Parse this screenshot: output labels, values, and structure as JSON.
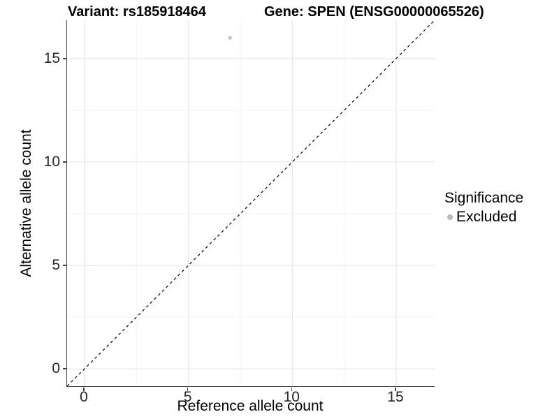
{
  "titles": {
    "variant": "Variant: rs185918464",
    "gene": "Gene: SPEN (ENSG00000065526)"
  },
  "axes": {
    "x": {
      "label": "Reference allele count",
      "major_ticks": [
        0,
        5,
        10,
        15
      ],
      "minor_ticks": [
        2.5,
        7.5,
        12.5
      ],
      "lim": [
        -0.84,
        16.85
      ]
    },
    "y": {
      "label": "Alternative allele count",
      "major_ticks": [
        0,
        5,
        10,
        15
      ],
      "minor_ticks": [
        2.5,
        7.5,
        12.5
      ],
      "lim": [
        -0.84,
        16.85
      ]
    }
  },
  "legend": {
    "title": "Significance",
    "items": [
      {
        "label": "Excluded",
        "color": "#b9b9b9"
      }
    ]
  },
  "chart_data": {
    "type": "scatter",
    "title": "Variant: rs185918464 | Gene: SPEN (ENSG00000065526)",
    "xlabel": "Reference allele count",
    "ylabel": "Alternative allele count",
    "xlim": [
      -0.84,
      16.85
    ],
    "ylim": [
      -0.84,
      16.85
    ],
    "x_ticks": [
      0,
      5,
      10,
      15
    ],
    "y_ticks": [
      0,
      5,
      10,
      15
    ],
    "grid": "major and minor, light gray, on white background",
    "legend_position": "right-center",
    "points": [
      {
        "x": 7,
        "y": 16,
        "series": "Excluded",
        "color": "#c2c2c2"
      }
    ],
    "reference_line": {
      "kind": "identity y = x",
      "style": "dashed",
      "color": "#000000"
    }
  },
  "colors": {
    "background": "#ffffff",
    "axis_line": "#454545",
    "major_grid": "#e8e8e8",
    "minor_grid": "#f3f3f3",
    "tick_text": "#262626",
    "point": "#c2c2c2",
    "legend_key": "#b9b9b9",
    "dashed_line": "#000000"
  }
}
